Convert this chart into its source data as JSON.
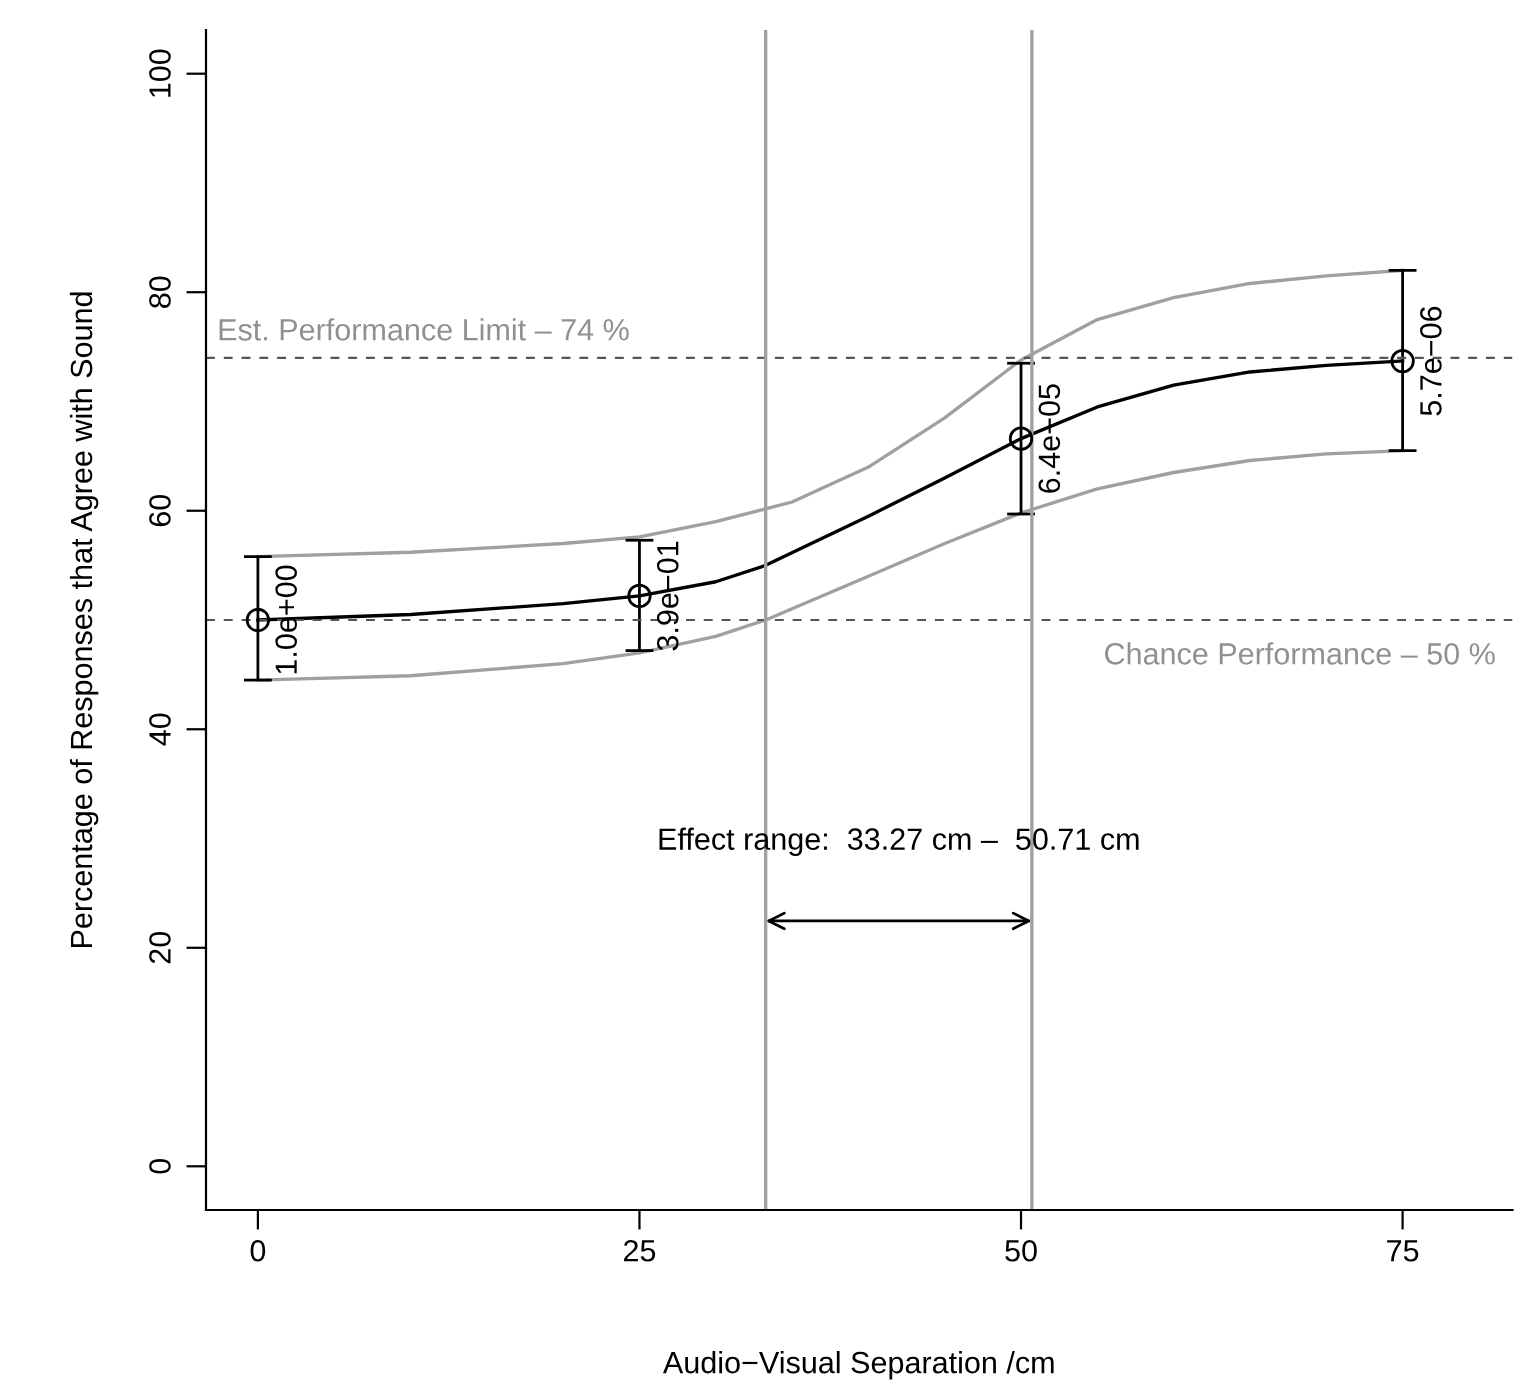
{
  "chart_data": {
    "type": "line",
    "xlabel": "Audio−Visual Separation /cm",
    "ylabel": "Percentage of Responses that Agree with Sound",
    "xlim": [
      -3.4,
      82.2
    ],
    "xticks": [
      0,
      25,
      50,
      75
    ],
    "ylim": [
      -4,
      104
    ],
    "yticks": [
      0,
      20,
      40,
      60,
      80,
      100
    ],
    "grid": false,
    "series": [
      {
        "color": "#a0a0a0",
        "x": [
          0,
          10,
          20,
          25,
          30,
          35,
          40,
          45,
          50,
          55,
          60,
          65,
          70,
          75
        ],
        "values": [
          55.8,
          56.2,
          57,
          57.6,
          59,
          60.8,
          64,
          68.5,
          73.8,
          77.5,
          79.5,
          80.8,
          81.5,
          82
        ]
      },
      {
        "color": "#a0a0a0",
        "x": [
          0,
          10,
          20,
          25,
          30,
          33.27,
          40,
          45,
          50,
          55,
          60,
          65,
          70,
          75
        ],
        "values": [
          44.5,
          44.9,
          46,
          47,
          48.5,
          50,
          54,
          57,
          59.8,
          62,
          63.5,
          64.6,
          65.2,
          65.5
        ]
      },
      {
        "color": "#000000",
        "x": [
          0,
          10,
          20,
          25,
          30,
          33.27,
          40,
          45,
          50,
          55,
          60,
          65,
          70,
          75
        ],
        "values": [
          50,
          50.5,
          51.5,
          52.2,
          53.5,
          55,
          59.5,
          63,
          66.6,
          69.5,
          71.5,
          72.7,
          73.3,
          73.7
        ]
      },
      {
        "type": "scatter",
        "color": "#000000",
        "marker": "circle",
        "x": [
          0,
          25,
          50,
          75
        ],
        "values": [
          50,
          52.2,
          66.6,
          73.7
        ],
        "errors": [
          [
            44.5,
            55.8
          ],
          [
            47.2,
            57.3
          ],
          [
            59.7,
            73.5
          ],
          [
            65.5,
            82
          ]
        ]
      }
    ],
    "ref_lines": [
      {
        "axis": "y",
        "value": 74,
        "label": "Est. Performance Limit – 74 %",
        "color": "#555555",
        "line_style": "dashed"
      },
      {
        "axis": "y",
        "value": 50,
        "label": "Chance Performance – 50 %",
        "color": "#555555",
        "line_style": "dashed"
      },
      {
        "axis": "x",
        "value": 33.27,
        "label": null,
        "color": "#a0a0a0",
        "line_style": "solid"
      },
      {
        "axis": "x",
        "value": 50.71,
        "label": null,
        "color": "#a0a0a0",
        "line_style": "solid"
      }
    ],
    "annotations": [
      "Effect range:  33.27 cm –  50.71 cm",
      {
        "text": "1.0e+00",
        "x": 0,
        "y": 50
      },
      {
        "text": "3.9e−01",
        "x": 25,
        "y": 52.2
      },
      {
        "text": "6.4e−05",
        "x": 50,
        "y": 66.6
      },
      {
        "text": "5.7e−06",
        "x": 75,
        "y": 73.7
      }
    ]
  }
}
